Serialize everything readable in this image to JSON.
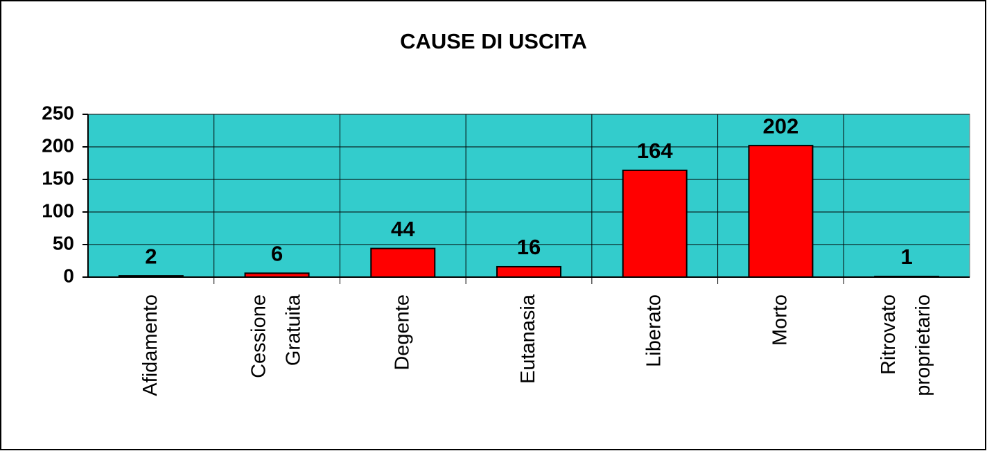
{
  "chart_data": {
    "type": "bar",
    "title": "CAUSE DI USCITA",
    "categories": [
      "Afidamento",
      "Cessione Gratuita",
      "Degente",
      "Eutanasia",
      "Liberato",
      "Morto",
      "Ritrovato proprietario"
    ],
    "values": [
      2,
      6,
      44,
      16,
      164,
      202,
      1
    ],
    "color": "#ff0000",
    "background": "#33cccc",
    "ylim": [
      0,
      250
    ],
    "yticks": [
      0,
      50,
      100,
      150,
      200,
      250
    ],
    "grid": true
  }
}
